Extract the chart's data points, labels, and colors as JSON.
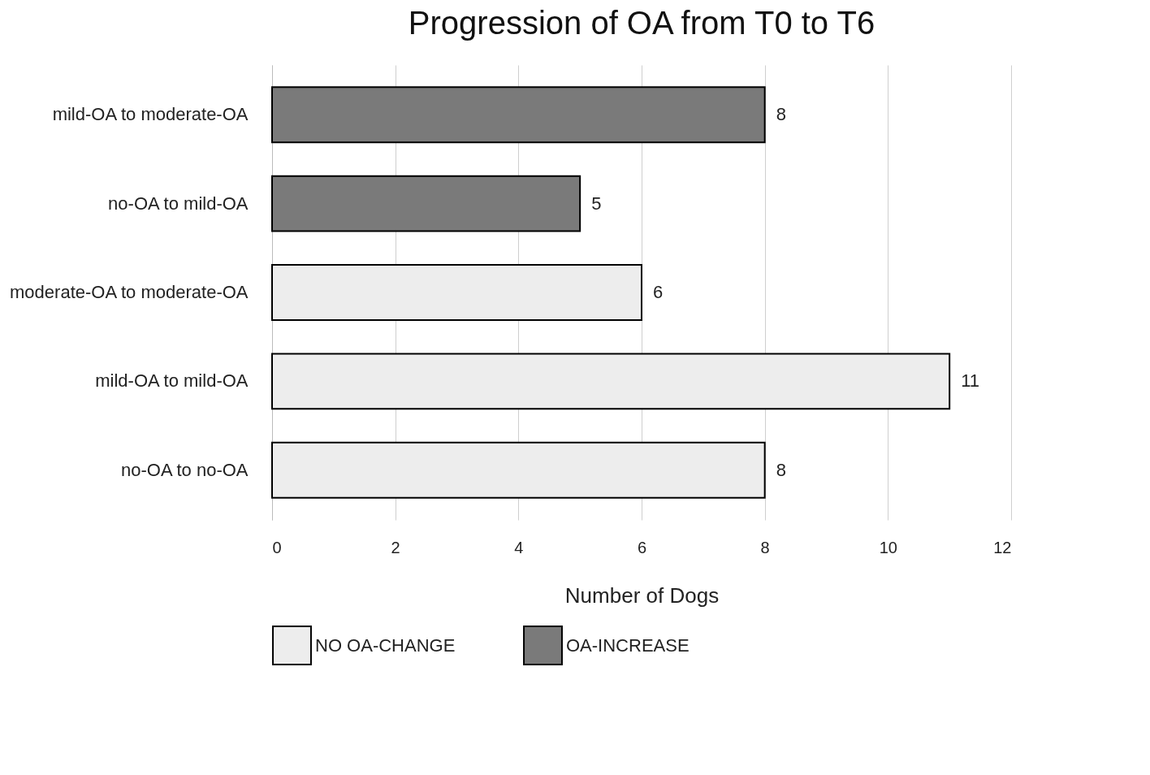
{
  "chart_data": {
    "type": "bar",
    "orientation": "horizontal",
    "title": "Progression of OA from T0 to T6",
    "xlabel": "Number  of Dogs",
    "categories": [
      "mild-OA to moderate-OA",
      "no-OA to mild-OA",
      "moderate-OA to moderate-OA",
      "mild-OA to mild-OA",
      "no-OA to no-OA"
    ],
    "series": [
      {
        "name": "NO OA-CHANGE",
        "color": "#ededed",
        "values": [
          null,
          null,
          6,
          11,
          8
        ]
      },
      {
        "name": "OA-INCREASE",
        "color": "#7a7a7a",
        "values": [
          8,
          5,
          null,
          null,
          null
        ]
      }
    ],
    "xlim": [
      0,
      12
    ],
    "xticks": [
      0,
      2,
      4,
      6,
      8,
      10,
      12
    ],
    "grid": "x",
    "legend": "bottom left",
    "data_labels": true
  }
}
